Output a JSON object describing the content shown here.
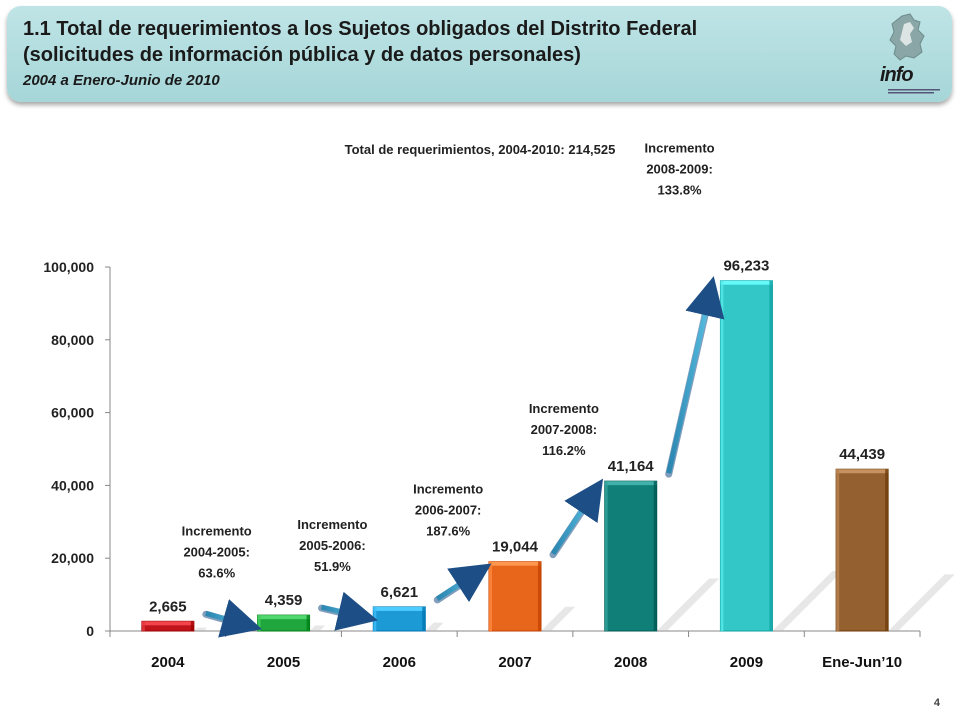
{
  "header": {
    "title_line1": "1.1 Total de requerimientos a los Sujetos obligados del Distrito Federal",
    "title_line2": "(solicitudes de información pública y de datos personales)",
    "period": "2004 a Enero-Junio de 2010"
  },
  "logo": {
    "text": "info",
    "icon": "map-logo-icon"
  },
  "page_number": "4",
  "chart_data": {
    "type": "bar",
    "title": "Total de requerimientos, 2004-2010: 214,525",
    "xlabel": "",
    "ylabel": "",
    "categories": [
      "2004",
      "2005",
      "2006",
      "2007",
      "2008",
      "2009",
      "Ene-Jun’10"
    ],
    "values": [
      2665,
      4359,
      6621,
      19044,
      41164,
      96233,
      44439
    ],
    "value_labels": [
      "2,665",
      "4,359",
      "6,621",
      "19,044",
      "41,164",
      "96,233",
      "44,439"
    ],
    "ylim": [
      0,
      100000
    ],
    "yticks": [
      0,
      20000,
      40000,
      60000,
      80000,
      100000
    ],
    "ytick_labels": [
      "0",
      "20,000",
      "40,000",
      "60,000",
      "80,000",
      "100,000"
    ],
    "grid": false,
    "bar_colors": [
      "#c0141a",
      "#1fa63c",
      "#1c9ad6",
      "#e8651c",
      "#0f7f78",
      "#33c7c7",
      "#94602f"
    ],
    "annotations": [
      {
        "from": "2004",
        "to": "2005",
        "lines": [
          "Incremento",
          "2004-2005:",
          "63.6%"
        ]
      },
      {
        "from": "2005",
        "to": "2006",
        "lines": [
          "Incremento",
          "2005-2006:",
          "51.9%"
        ]
      },
      {
        "from": "2006",
        "to": "2007",
        "lines": [
          "Incremento",
          "2006-2007:",
          "187.6%"
        ]
      },
      {
        "from": "2007",
        "to": "2008",
        "lines": [
          "Incremento",
          "2007-2008:",
          "116.2%"
        ]
      },
      {
        "from": "2008",
        "to": "2009",
        "lines": [
          "Incremento",
          "2008-2009:",
          "133.8%"
        ]
      }
    ],
    "arrow_color": "#3aa0c8"
  }
}
